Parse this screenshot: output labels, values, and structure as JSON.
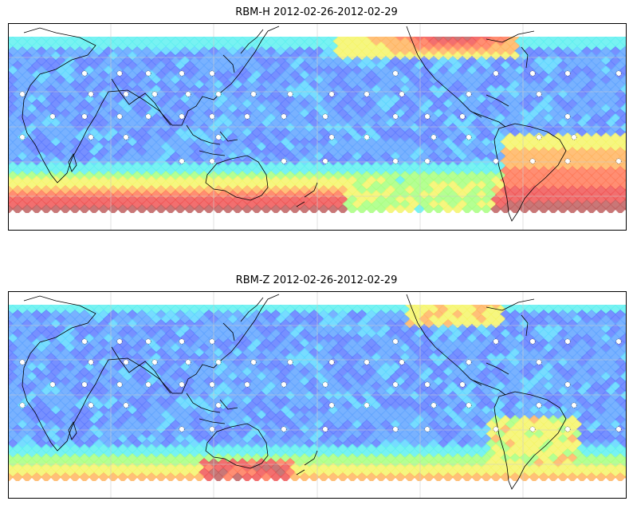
{
  "maps": [
    {
      "id": "rbm-h",
      "title": "RBM-H 2012-02-26-2012-02-29",
      "variant": "h"
    },
    {
      "id": "rbm-z",
      "title": "RBM-Z 2012-02-26-2012-02-29",
      "variant": "z"
    }
  ],
  "colormap": [
    "#5b5bff",
    "#5f7dff",
    "#62a5ff",
    "#5fd6ff",
    "#60f0f0",
    "#a8ff80",
    "#f4f56a",
    "#ffb561",
    "#ff7a5a",
    "#f05656",
    "#c05f5f"
  ],
  "coastline_color": "#000000",
  "grid_color": "#cccccc",
  "ocean_base_color": "#7b8cff"
}
